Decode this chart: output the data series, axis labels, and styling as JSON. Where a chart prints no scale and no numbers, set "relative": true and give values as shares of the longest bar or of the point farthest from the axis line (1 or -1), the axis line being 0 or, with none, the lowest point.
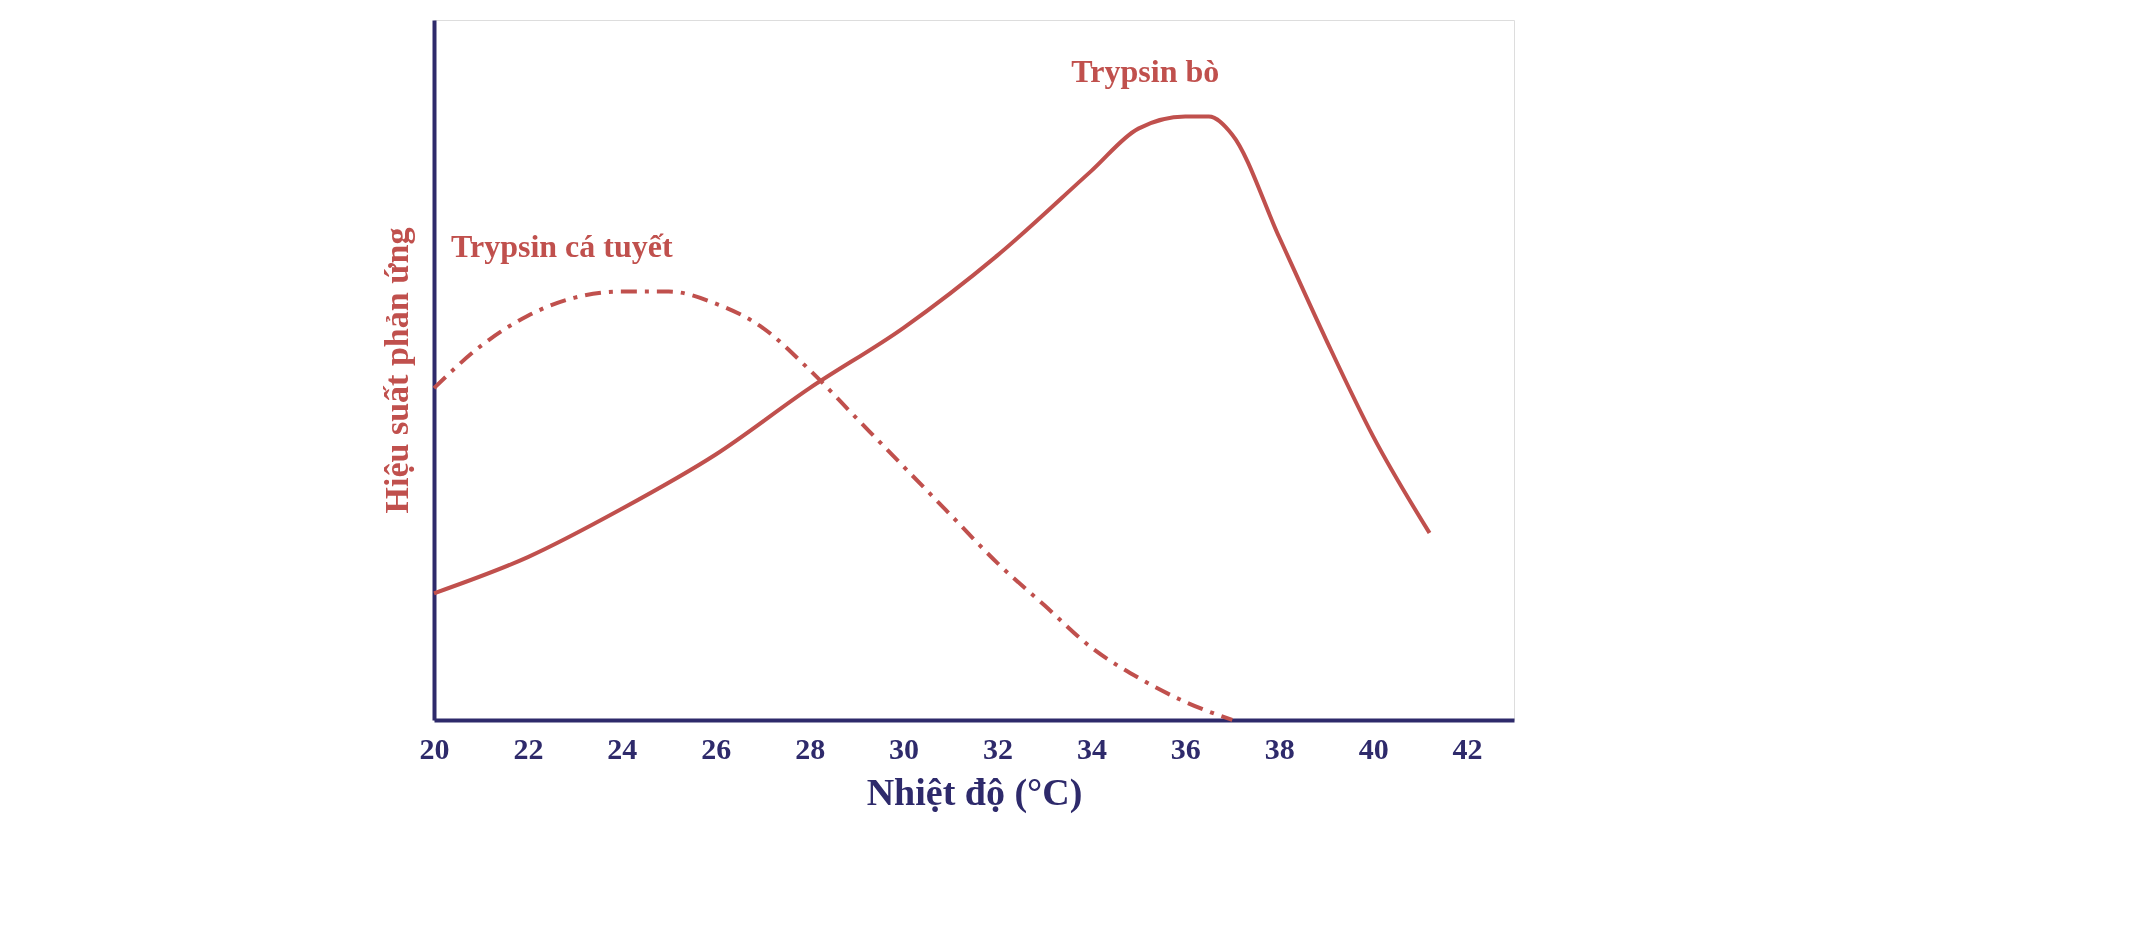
{
  "chart_data": {
    "type": "line",
    "relative": true,
    "xlabel": "Nhiệt độ (°C)",
    "ylabel": "Hiệu suất phản ứng",
    "xlim": [
      20,
      43
    ],
    "xticks": [
      20,
      22,
      24,
      26,
      28,
      30,
      32,
      34,
      36,
      38,
      40,
      42
    ],
    "grid": false,
    "marker": "none",
    "series": [
      {
        "name": "Trypsin bò",
        "color": "#c0504d",
        "line_style": "solid",
        "x": [
          20,
          22,
          24,
          26,
          28,
          30,
          32,
          34,
          35,
          36,
          36.5,
          37,
          38,
          39,
          40,
          41.2
        ],
        "values": [
          0.21,
          0.27,
          0.35,
          0.44,
          0.55,
          0.65,
          0.77,
          0.91,
          0.98,
          1.0,
          1.0,
          0.97,
          0.8,
          0.63,
          0.47,
          0.31
        ]
      },
      {
        "name": "Trypsin cá tuyết",
        "color": "#c0504d",
        "line_style": "dashed",
        "x": [
          20,
          21,
          22,
          23,
          24,
          25,
          26,
          27,
          28,
          29,
          30,
          31,
          32,
          33,
          34,
          35,
          36,
          37
        ],
        "values": [
          0.55,
          0.62,
          0.67,
          0.7,
          0.71,
          0.71,
          0.69,
          0.65,
          0.58,
          0.5,
          0.42,
          0.34,
          0.26,
          0.19,
          0.12,
          0.07,
          0.03,
          0.0
        ]
      }
    ]
  }
}
